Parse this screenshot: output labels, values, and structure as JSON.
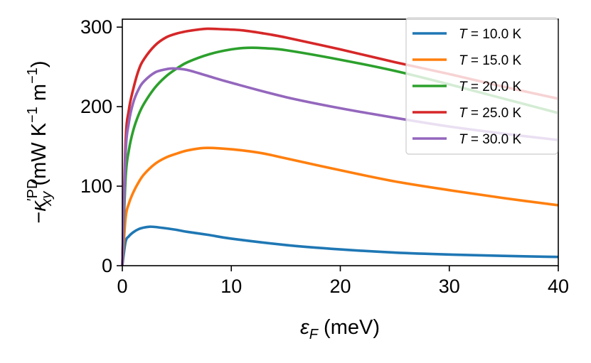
{
  "chart_data": {
    "type": "line",
    "title": "",
    "xlabel": "ε_F (meV)",
    "ylabel": "−κ′PD_xy (mW K⁻¹ m⁻¹)",
    "xlim": [
      0,
      40
    ],
    "ylim": [
      0,
      310
    ],
    "xticks": [
      0,
      10,
      20,
      30,
      40
    ],
    "yticks": [
      0,
      100,
      200,
      300
    ],
    "grid": false,
    "legend_position": "top-right",
    "series": [
      {
        "name": "T = 10.0 K",
        "temperature_label": "10.0 K",
        "color": "#1f77b4",
        "peak_x": 2.5,
        "peak_y": 49,
        "end_y": 11,
        "x": [
          0,
          0.3,
          0.6,
          1,
          1.5,
          2,
          2.5,
          3,
          4,
          5,
          6,
          8,
          10,
          15,
          20,
          25,
          30,
          35,
          40
        ],
        "values": [
          0,
          30,
          37,
          42,
          46,
          48,
          49,
          48.7,
          47,
          45,
          42.5,
          38.5,
          34,
          26,
          20.5,
          16.5,
          14,
          12.3,
          11
        ]
      },
      {
        "name": "T = 15.0 K",
        "temperature_label": "15.0 K",
        "color": "#ff7f0e",
        "peak_x": 7.5,
        "peak_y": 148,
        "end_y": 76,
        "x": [
          0,
          0.3,
          0.6,
          1,
          1.5,
          2,
          3,
          4,
          5,
          6,
          7.5,
          9,
          11,
          13,
          15,
          20,
          25,
          30,
          35,
          40
        ],
        "values": [
          0,
          60,
          78,
          92,
          105,
          115,
          128,
          136,
          141,
          145,
          148,
          147.5,
          145,
          141,
          135,
          120,
          106,
          95,
          85,
          76
        ]
      },
      {
        "name": "T = 20.0 K",
        "temperature_label": "20.0 K",
        "color": "#2ca02c",
        "peak_x": 11.5,
        "peak_y": 274,
        "end_y": 192,
        "x": [
          0,
          0.3,
          0.6,
          1,
          1.5,
          2,
          3,
          4,
          5,
          6,
          8,
          10,
          11.5,
          13,
          15,
          20,
          25,
          30,
          35,
          40
        ],
        "values": [
          0,
          110,
          145,
          170,
          190,
          204,
          224,
          238,
          248,
          256,
          266,
          272,
          274,
          273.5,
          271,
          259,
          245,
          228,
          210,
          192
        ]
      },
      {
        "name": "T = 25.0 K",
        "temperature_label": "25.0 K",
        "color": "#d62728",
        "peak_x": 7.8,
        "peak_y": 298,
        "end_y": 210,
        "x": [
          0,
          0.3,
          0.6,
          1,
          1.5,
          2,
          3,
          4,
          5,
          6,
          7,
          7.8,
          9,
          11,
          13,
          15,
          20,
          25,
          30,
          35,
          40
        ],
        "values": [
          0,
          155,
          196,
          222,
          246,
          260,
          277,
          287,
          292,
          295,
          297,
          298,
          297.5,
          296,
          292,
          287,
          272,
          256,
          241,
          225,
          210
        ]
      },
      {
        "name": "T = 30.0 K",
        "temperature_label": "30.0 K",
        "color": "#9467bd",
        "peak_x": 4.5,
        "peak_y": 248,
        "end_y": 158,
        "x": [
          0,
          0.3,
          0.6,
          1,
          1.5,
          2,
          3,
          4,
          4.5,
          5,
          6,
          8,
          10,
          15,
          20,
          25,
          30,
          35,
          40
        ],
        "values": [
          0,
          140,
          180,
          205,
          222,
          232,
          243,
          247,
          248,
          247.8,
          246,
          238,
          230,
          212,
          198,
          186,
          175,
          166,
          158
        ]
      }
    ]
  }
}
